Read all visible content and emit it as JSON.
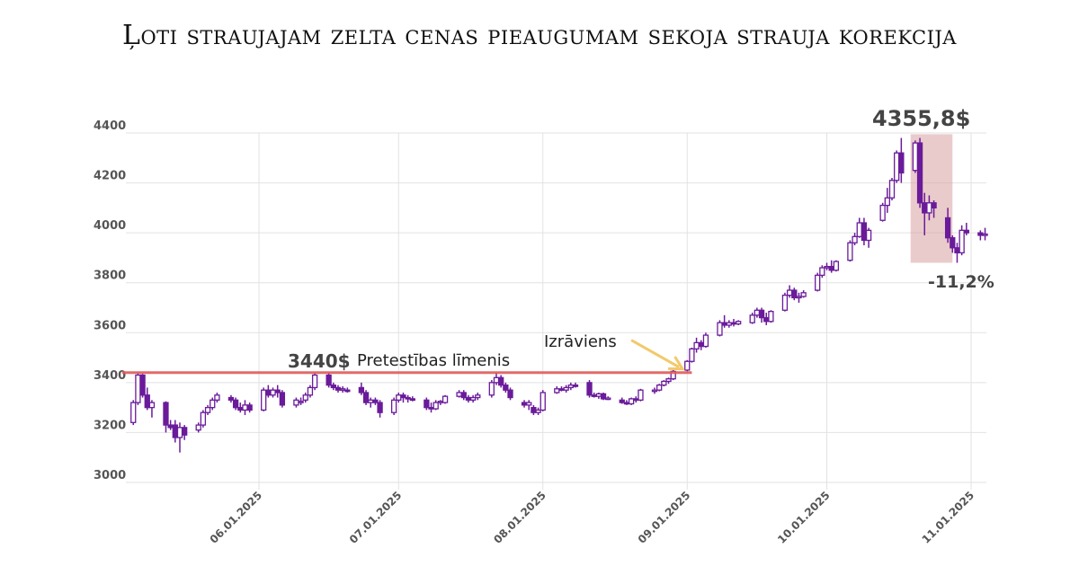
{
  "title": "Ļoti straujajam zelta cenas pieaugumam sekoja strauja korekcija",
  "chart_data": {
    "type": "candlestick",
    "title": "Ļoti straujajam zelta cenas pieaugumam sekoja strauja korekcija",
    "xlabel": "",
    "ylabel": "",
    "ylim": [
      3000,
      4400
    ],
    "yticks": [
      3000,
      3200,
      3400,
      3600,
      3800,
      4000,
      4200,
      4400
    ],
    "xticks": [
      {
        "date": "2025-06-01",
        "label": "06.01.2025"
      },
      {
        "date": "2025-07-01",
        "label": "07.01.2025"
      },
      {
        "date": "2025-08-01",
        "label": "08.01.2025"
      },
      {
        "date": "2025-09-01",
        "label": "09.01.2025"
      },
      {
        "date": "2025-10-01",
        "label": "10.01.2025"
      },
      {
        "date": "2025-11-01",
        "label": "11.01.2025"
      }
    ],
    "grid": true,
    "colors": {
      "candle": "#6a1b9a",
      "resistance": "#e05a5a",
      "arrow": "#f2c96b",
      "correction": "#d9a0a0"
    },
    "candle_fields": [
      "date",
      "open",
      "high",
      "low",
      "close"
    ],
    "weeks": [
      {
        "start": "2025-05-05",
        "candles": [
          [
            3240,
            3330,
            3230,
            3320
          ],
          [
            3320,
            3440,
            3310,
            3430
          ],
          [
            3430,
            3435,
            3340,
            3350
          ],
          [
            3350,
            3380,
            3290,
            3300
          ],
          [
            3300,
            3330,
            3260,
            3320
          ]
        ]
      },
      {
        "start": "2025-05-12",
        "candles": [
          [
            3320,
            3325,
            3200,
            3230
          ],
          [
            3230,
            3250,
            3210,
            3220
          ],
          [
            3230,
            3250,
            3160,
            3180
          ],
          [
            3180,
            3240,
            3120,
            3220
          ],
          [
            3220,
            3230,
            3170,
            3190
          ]
        ]
      },
      {
        "start": "2025-05-19",
        "candles": [
          [
            3210,
            3240,
            3200,
            3230
          ],
          [
            3230,
            3290,
            3220,
            3280
          ],
          [
            3280,
            3310,
            3270,
            3300
          ],
          [
            3300,
            3340,
            3290,
            3330
          ],
          [
            3330,
            3360,
            3320,
            3350
          ]
        ]
      },
      {
        "start": "2025-05-26",
        "candles": [
          [
            3340,
            3350,
            3320,
            3330
          ],
          [
            3330,
            3340,
            3290,
            3300
          ],
          [
            3300,
            3320,
            3280,
            3290
          ],
          [
            3290,
            3330,
            3270,
            3310
          ],
          [
            3310,
            3320,
            3280,
            3290
          ]
        ]
      },
      {
        "start": "2025-06-02",
        "candles": [
          [
            3290,
            3380,
            3285,
            3370
          ],
          [
            3370,
            3390,
            3340,
            3350
          ],
          [
            3350,
            3380,
            3340,
            3370
          ],
          [
            3370,
            3390,
            3340,
            3360
          ],
          [
            3360,
            3370,
            3300,
            3310
          ]
        ]
      },
      {
        "start": "2025-06-09",
        "candles": [
          [
            3310,
            3340,
            3300,
            3330
          ],
          [
            3320,
            3340,
            3310,
            3325
          ],
          [
            3330,
            3360,
            3320,
            3350
          ],
          [
            3350,
            3390,
            3340,
            3380
          ],
          [
            3380,
            3440,
            3370,
            3430
          ]
        ]
      },
      {
        "start": "2025-06-16",
        "candles": [
          [
            3430,
            3440,
            3380,
            3390
          ],
          [
            3390,
            3400,
            3370,
            3380
          ],
          [
            3380,
            3390,
            3360,
            3370
          ],
          [
            3370,
            3385,
            3360,
            3375
          ],
          [
            3370,
            3380,
            3360,
            3365
          ]
        ]
      },
      {
        "start": "2025-06-23",
        "candles": [
          [
            3380,
            3400,
            3350,
            3360
          ],
          [
            3360,
            3370,
            3310,
            3320
          ],
          [
            3320,
            3340,
            3300,
            3330
          ],
          [
            3330,
            3340,
            3310,
            3320
          ],
          [
            3320,
            3330,
            3260,
            3280
          ]
        ]
      },
      {
        "start": "2025-06-30",
        "candles": [
          [
            3280,
            3340,
            3270,
            3330
          ],
          [
            3330,
            3360,
            3320,
            3350
          ],
          [
            3350,
            3360,
            3320,
            3340
          ],
          [
            3340,
            3350,
            3320,
            3335
          ],
          [
            3335,
            3345,
            3325,
            3330
          ]
        ]
      },
      {
        "start": "2025-07-07",
        "candles": [
          [
            3330,
            3340,
            3290,
            3300
          ],
          [
            3300,
            3320,
            3280,
            3295
          ],
          [
            3295,
            3330,
            3290,
            3320
          ],
          [
            3320,
            3330,
            3310,
            3325
          ],
          [
            3320,
            3350,
            3315,
            3345
          ]
        ]
      },
      {
        "start": "2025-07-14",
        "candles": [
          [
            3345,
            3370,
            3340,
            3360
          ],
          [
            3360,
            3370,
            3330,
            3340
          ],
          [
            3340,
            3350,
            3320,
            3330
          ],
          [
            3330,
            3350,
            3320,
            3340
          ],
          [
            3340,
            3360,
            3330,
            3350
          ]
        ]
      },
      {
        "start": "2025-07-21",
        "candles": [
          [
            3350,
            3410,
            3340,
            3400
          ],
          [
            3400,
            3440,
            3390,
            3420
          ],
          [
            3420,
            3430,
            3380,
            3390
          ],
          [
            3390,
            3400,
            3360,
            3370
          ],
          [
            3370,
            3380,
            3330,
            3340
          ]
        ]
      },
      {
        "start": "2025-07-28",
        "candles": [
          [
            3320,
            3330,
            3300,
            3310
          ],
          [
            3310,
            3330,
            3290,
            3320
          ],
          [
            3300,
            3310,
            3270,
            3280
          ],
          [
            3280,
            3300,
            3270,
            3290
          ],
          [
            3290,
            3370,
            3285,
            3360
          ]
        ]
      },
      {
        "start": "2025-08-04",
        "candles": [
          [
            3360,
            3385,
            3355,
            3375
          ],
          [
            3375,
            3385,
            3365,
            3370
          ],
          [
            3370,
            3390,
            3360,
            3380
          ],
          [
            3380,
            3400,
            3370,
            3390
          ],
          [
            3390,
            3400,
            3380,
            3385
          ]
        ]
      },
      {
        "start": "2025-08-11",
        "candles": [
          [
            3400,
            3410,
            3340,
            3350
          ],
          [
            3350,
            3360,
            3340,
            3345
          ],
          [
            3345,
            3360,
            3335,
            3355
          ],
          [
            3355,
            3360,
            3330,
            3335
          ],
          [
            3335,
            3345,
            3330,
            3338
          ]
        ]
      },
      {
        "start": "2025-08-18",
        "candles": [
          [
            3330,
            3340,
            3315,
            3320
          ],
          [
            3320,
            3330,
            3310,
            3315
          ],
          [
            3315,
            3340,
            3310,
            3335
          ],
          [
            3335,
            3345,
            3320,
            3330
          ],
          [
            3330,
            3375,
            3325,
            3370
          ]
        ]
      },
      {
        "start": "2025-08-25",
        "candles": [
          [
            3365,
            3380,
            3355,
            3370
          ],
          [
            3370,
            3395,
            3365,
            3390
          ],
          [
            3390,
            3410,
            3385,
            3405
          ],
          [
            3405,
            3420,
            3395,
            3415
          ],
          [
            3415,
            3450,
            3410,
            3445
          ]
        ]
      },
      {
        "start": "2025-09-01",
        "candles": [
          [
            3450,
            3490,
            3445,
            3485
          ],
          [
            3485,
            3540,
            3480,
            3535
          ],
          [
            3535,
            3580,
            3520,
            3560
          ],
          [
            3560,
            3570,
            3530,
            3545
          ],
          [
            3545,
            3600,
            3540,
            3590
          ]
        ]
      },
      {
        "start": "2025-09-08",
        "candles": [
          [
            3590,
            3650,
            3585,
            3640
          ],
          [
            3640,
            3670,
            3620,
            3630
          ],
          [
            3630,
            3650,
            3620,
            3640
          ],
          [
            3640,
            3655,
            3625,
            3635
          ],
          [
            3635,
            3650,
            3630,
            3645
          ]
        ]
      },
      {
        "start": "2025-09-15",
        "candles": [
          [
            3640,
            3680,
            3635,
            3670
          ],
          [
            3670,
            3700,
            3660,
            3690
          ],
          [
            3690,
            3700,
            3640,
            3660
          ],
          [
            3660,
            3680,
            3630,
            3645
          ],
          [
            3645,
            3690,
            3640,
            3685
          ]
        ]
      },
      {
        "start": "2025-09-22",
        "candles": [
          [
            3690,
            3760,
            3685,
            3750
          ],
          [
            3750,
            3790,
            3740,
            3770
          ],
          [
            3770,
            3780,
            3730,
            3740
          ],
          [
            3740,
            3760,
            3720,
            3745
          ],
          [
            3745,
            3770,
            3740,
            3760
          ]
        ]
      },
      {
        "start": "2025-09-29",
        "candles": [
          [
            3770,
            3840,
            3765,
            3830
          ],
          [
            3830,
            3870,
            3820,
            3860
          ],
          [
            3860,
            3880,
            3850,
            3865
          ],
          [
            3865,
            3890,
            3840,
            3850
          ],
          [
            3850,
            3890,
            3845,
            3885
          ]
        ]
      },
      {
        "start": "2025-10-06",
        "candles": [
          [
            3890,
            3970,
            3885,
            3960
          ],
          [
            3960,
            4000,
            3950,
            3985
          ],
          [
            3985,
            4060,
            3980,
            4040
          ],
          [
            4040,
            4060,
            3950,
            3970
          ],
          [
            3970,
            4020,
            3940,
            4010
          ]
        ]
      },
      {
        "start": "2025-10-13",
        "candles": [
          [
            4050,
            4120,
            4045,
            4110
          ],
          [
            4110,
            4180,
            4080,
            4140
          ],
          [
            4140,
            4220,
            4130,
            4210
          ],
          [
            4210,
            4330,
            4200,
            4320
          ],
          [
            4320,
            4380,
            4200,
            4240
          ]
        ]
      },
      {
        "start": "2025-10-20",
        "candles": [
          [
            4250,
            4370,
            4240,
            4360
          ],
          [
            4360,
            4380,
            4100,
            4120
          ],
          [
            4120,
            4160,
            3990,
            4080
          ],
          [
            4080,
            4150,
            4050,
            4120
          ],
          [
            4120,
            4130,
            4060,
            4100
          ]
        ]
      },
      {
        "start": "2025-10-27",
        "candles": [
          [
            4060,
            4100,
            3960,
            3980
          ],
          [
            3980,
            3990,
            3920,
            3940
          ],
          [
            3940,
            3960,
            3880,
            3920
          ],
          [
            3920,
            4030,
            3910,
            4010
          ],
          [
            4010,
            4040,
            3990,
            4000
          ]
        ]
      },
      {
        "start": "2025-11-03",
        "candles": [
          [
            4000,
            4010,
            3970,
            3990
          ],
          [
            3990,
            4020,
            3970,
            3995
          ]
        ]
      }
    ],
    "annotations": {
      "resistance": {
        "price": 3440,
        "value_label": "3440$",
        "label": "Pretestības līmenis",
        "from": "2025-05-03",
        "to": "2025-09-02"
      },
      "breakout": {
        "label": "Izrāviens",
        "arrow_from": {
          "date": "2025-08-20",
          "price": 3570
        },
        "arrow_to": {
          "date": "2025-08-31",
          "price": 3455
        }
      },
      "peak": {
        "label": "4355,8$"
      },
      "correction": {
        "label": "-11,2%",
        "from": "2025-10-19",
        "to": "2025-10-28",
        "price_high": 4395,
        "price_low": 3880
      }
    }
  }
}
